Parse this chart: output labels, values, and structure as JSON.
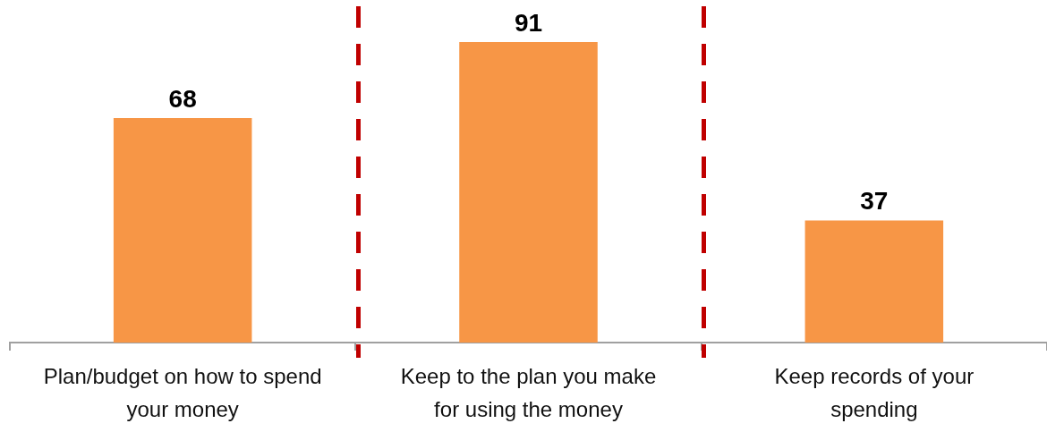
{
  "chart_data": {
    "type": "bar",
    "categories": [
      "Plan/budget on how to spend your money",
      "Keep to the plan you make for using the money",
      "Keep records of your spending"
    ],
    "values": [
      68,
      91,
      37
    ],
    "color": "#f79646",
    "data_labels": true
  }
}
